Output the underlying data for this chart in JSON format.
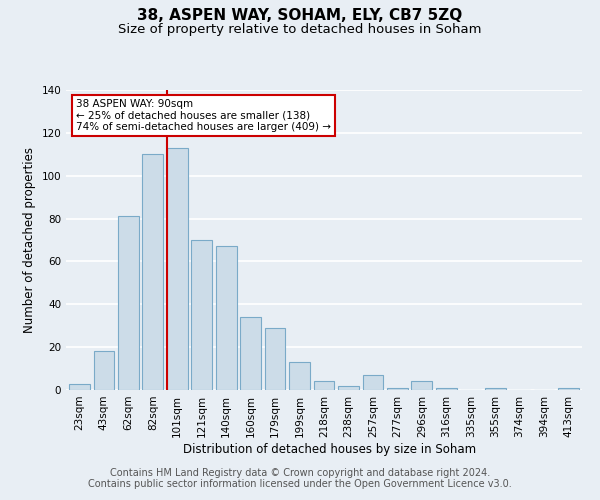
{
  "title": "38, ASPEN WAY, SOHAM, ELY, CB7 5ZQ",
  "subtitle": "Size of property relative to detached houses in Soham",
  "xlabel": "Distribution of detached houses by size in Soham",
  "ylabel": "Number of detached properties",
  "bar_labels": [
    "23sqm",
    "43sqm",
    "62sqm",
    "82sqm",
    "101sqm",
    "121sqm",
    "140sqm",
    "160sqm",
    "179sqm",
    "199sqm",
    "218sqm",
    "238sqm",
    "257sqm",
    "277sqm",
    "296sqm",
    "316sqm",
    "335sqm",
    "355sqm",
    "374sqm",
    "394sqm",
    "413sqm"
  ],
  "bar_values": [
    3,
    18,
    81,
    110,
    113,
    70,
    67,
    34,
    29,
    13,
    4,
    2,
    7,
    1,
    4,
    1,
    0,
    1,
    0,
    0,
    1
  ],
  "bar_color": "#ccdce8",
  "bar_edge_color": "#7aaac8",
  "ylim": [
    0,
    140
  ],
  "yticks": [
    0,
    20,
    40,
    60,
    80,
    100,
    120,
    140
  ],
  "marker_label": "38 ASPEN WAY: 90sqm",
  "annotation_line1": "← 25% of detached houses are smaller (138)",
  "annotation_line2": "74% of semi-detached houses are larger (409) →",
  "annotation_box_color": "#ffffff",
  "annotation_box_edge": "#cc0000",
  "vline_color": "#cc0000",
  "footer_line1": "Contains HM Land Registry data © Crown copyright and database right 2024.",
  "footer_line2": "Contains public sector information licensed under the Open Government Licence v3.0.",
  "background_color": "#e8eef4",
  "grid_color": "#ffffff",
  "title_fontsize": 11,
  "subtitle_fontsize": 9.5,
  "axis_label_fontsize": 8.5,
  "tick_fontsize": 7.5,
  "footer_fontsize": 7
}
